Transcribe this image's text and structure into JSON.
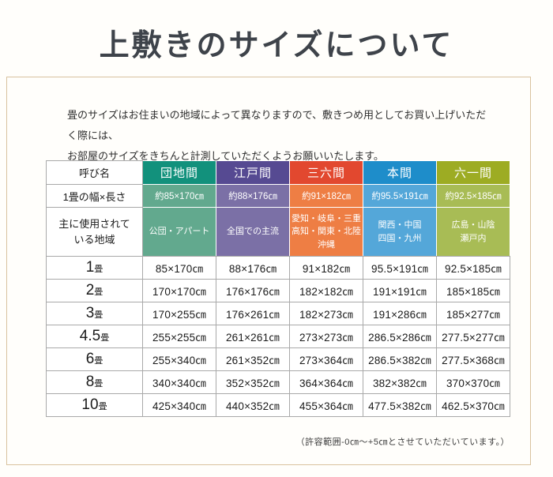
{
  "page": {
    "title": "上敷きのサイズについて",
    "intro_line1": "畳のサイズはお住まいの地域によって異なりますので、敷きつめ用としてお買い上げいただく際には、",
    "intro_line2": "お部屋のサイズをきちんと計測していただくようお願いいたします。",
    "footnote": "（許容範囲-0㎝〜+5㎝とさせていただいています。）"
  },
  "table": {
    "corner_label": "呼び名",
    "row_width_label": "1畳の幅×長さ",
    "row_region_label": "主に使用されて\nいる地域",
    "columns": [
      {
        "name": "団地間",
        "color": "#12917c",
        "color_light": "#62a98e",
        "width_per_mat": "約85×170㎝",
        "region": "公団・アパート"
      },
      {
        "name": "江戸間",
        "color": "#564a92",
        "color_light": "#7b70a6",
        "width_per_mat": "約88×176㎝",
        "region": "全国での主流"
      },
      {
        "name": "三六間",
        "color": "#e2482f",
        "color_light": "#ee7e44",
        "width_per_mat": "約91×182㎝",
        "region": "愛知・岐阜・三重\n高知・関東・北陸\n沖縄"
      },
      {
        "name": "本間",
        "color": "#1e8dca",
        "color_light": "#54a7d9",
        "width_per_mat": "約95.5×191㎝",
        "region": "関西・中国\n四国・九州"
      },
      {
        "name": "六一間",
        "color": "#9dac23",
        "color_light": "#a8bc55",
        "width_per_mat": "約92.5×185㎝",
        "region": "広島・山陰\n瀬戸内"
      }
    ],
    "size_rows": [
      {
        "num": "1",
        "unit": "畳",
        "values": [
          "85×170㎝",
          "88×176㎝",
          "91×182㎝",
          "95.5×191㎝",
          "92.5×185㎝"
        ]
      },
      {
        "num": "2",
        "unit": "畳",
        "values": [
          "170×170㎝",
          "176×176㎝",
          "182×182㎝",
          "191×191㎝",
          "185×185㎝"
        ]
      },
      {
        "num": "3",
        "unit": "畳",
        "values": [
          "170×255㎝",
          "176×261㎝",
          "182×273㎝",
          "191×286㎝",
          "185×277㎝"
        ]
      },
      {
        "num": "4.5",
        "unit": "畳",
        "values": [
          "255×255㎝",
          "261×261㎝",
          "273×273㎝",
          "286.5×286㎝",
          "277.5×277㎝"
        ]
      },
      {
        "num": "6",
        "unit": "畳",
        "values": [
          "255×340㎝",
          "261×352㎝",
          "273×364㎝",
          "286.5×382㎝",
          "277.5×368㎝"
        ]
      },
      {
        "num": "8",
        "unit": "畳",
        "values": [
          "340×340㎝",
          "352×352㎝",
          "364×364㎝",
          "382×382㎝",
          "370×370㎝"
        ]
      },
      {
        "num": "10",
        "unit": "畳",
        "values": [
          "425×340㎝",
          "440×352㎝",
          "455×364㎝",
          "477.5×382㎝",
          "462.5×370㎝"
        ]
      }
    ]
  }
}
